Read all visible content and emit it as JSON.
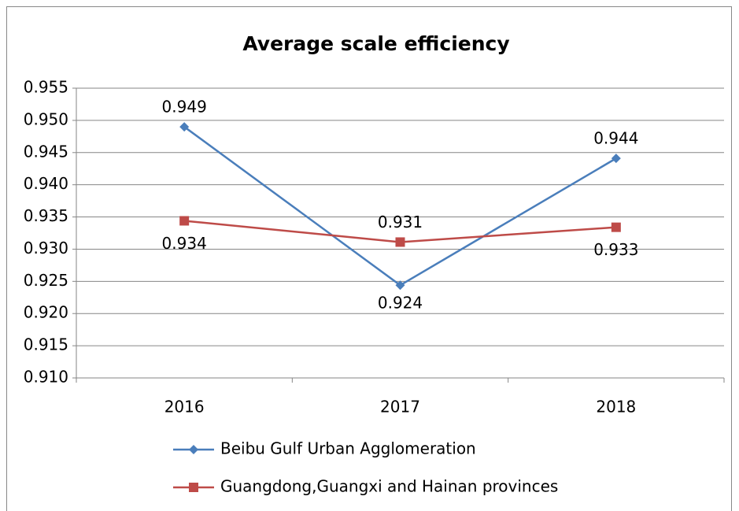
{
  "chart_data": {
    "type": "line",
    "title": "Average scale efficiency",
    "categories": [
      "2016",
      "2017",
      "2018"
    ],
    "series": [
      {
        "name": "Beibu Gulf Urban Agglomeration",
        "color": "#4a7ebb",
        "marker": "diamond",
        "values": [
          0.949,
          0.9244,
          0.9441
        ],
        "value_labels": [
          "0.949",
          "0.924",
          "0.944"
        ]
      },
      {
        "name": "Guangdong,Guangxi and Hainan provinces",
        "color": "#be4b48",
        "marker": "square",
        "values": [
          0.9344,
          0.9311,
          0.9334
        ],
        "value_labels": [
          "0.934",
          "0.931",
          "0.933"
        ]
      }
    ],
    "ylim": [
      0.91,
      0.955
    ],
    "yticks": [
      {
        "value": 0.91,
        "label": "0.910"
      },
      {
        "value": 0.915,
        "label": "0.915"
      },
      {
        "value": 0.92,
        "label": "0.920"
      },
      {
        "value": 0.925,
        "label": "0.925"
      },
      {
        "value": 0.93,
        "label": "0.930"
      },
      {
        "value": 0.935,
        "label": "0.935"
      },
      {
        "value": 0.94,
        "label": "0.940"
      },
      {
        "value": 0.945,
        "label": "0.945"
      },
      {
        "value": 0.95,
        "label": "0.950"
      },
      {
        "value": 0.955,
        "label": "0.955"
      }
    ],
    "grid": true,
    "legend": "bottom"
  }
}
